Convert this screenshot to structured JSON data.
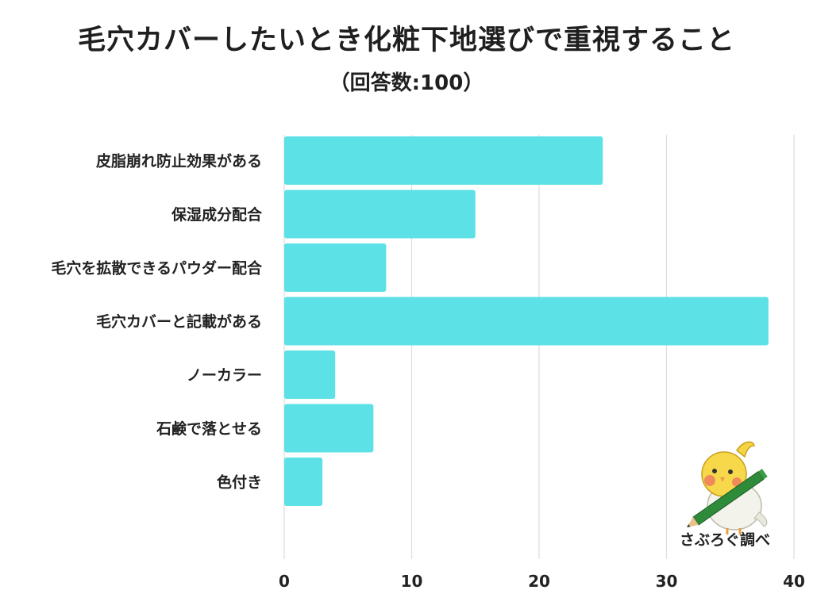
{
  "chart_data": {
    "type": "bar",
    "orientation": "horizontal",
    "title": "毛穴カバーしたいとき化粧下地選びで重視すること",
    "subtitle": "（回答数:100）",
    "categories": [
      "皮脂崩れ防止効果がある",
      "保湿成分配合",
      "毛穴を拡散できるパウダー配合",
      "毛穴カバーと記載がある",
      "ノーカラー",
      "石鹸で落とせる",
      "色付き"
    ],
    "values": [
      25,
      15,
      8,
      38,
      4,
      7,
      3
    ],
    "xlim": [
      0,
      40
    ],
    "ticks": [
      0,
      10,
      20,
      30,
      40
    ],
    "grid": true,
    "bar_color": "#5ce1e6",
    "grid_color": "#dddddd"
  },
  "branding": {
    "credit": "さぶろぐ調べ",
    "mascot_icon": "bird-mascot-with-pencil-icon"
  }
}
